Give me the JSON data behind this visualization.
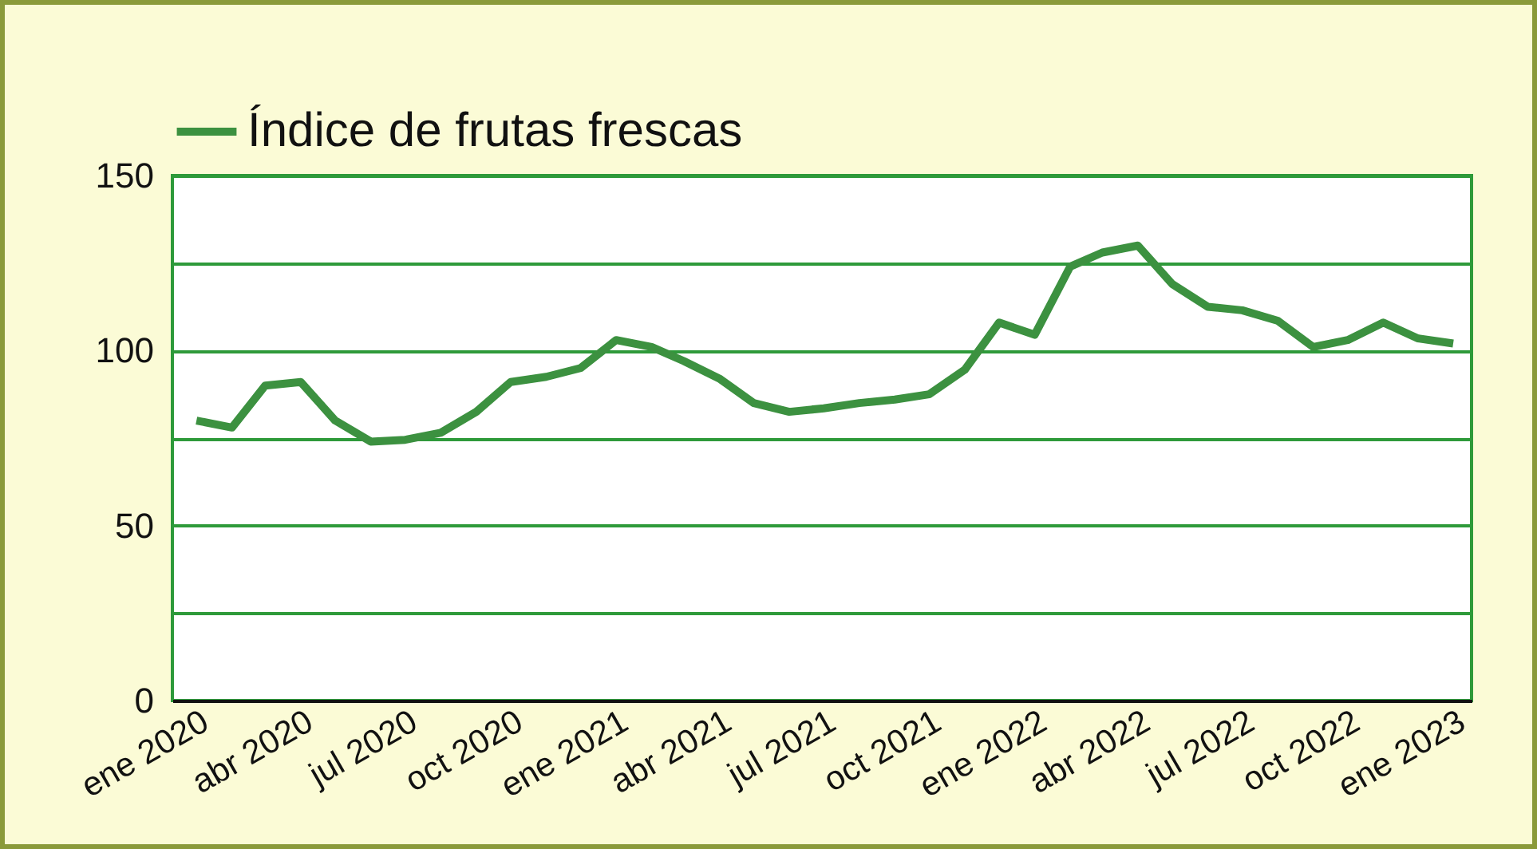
{
  "chart_data": {
    "type": "line",
    "x": [
      "2020-01",
      "2020-02",
      "2020-03",
      "2020-04",
      "2020-05",
      "2020-06",
      "2020-07",
      "2020-08",
      "2020-09",
      "2020-10",
      "2020-11",
      "2020-12",
      "2021-01",
      "2021-02",
      "2021-03",
      "2021-04",
      "2021-05",
      "2021-06",
      "2021-07",
      "2021-08",
      "2021-09",
      "2021-10",
      "2021-11",
      "2021-12",
      "2022-01",
      "2022-02",
      "2022-03",
      "2022-04",
      "2022-05",
      "2022-06",
      "2022-07",
      "2022-08",
      "2022-09",
      "2022-10",
      "2022-11",
      "2022-12",
      "2023-01"
    ],
    "series": [
      {
        "name": "Índice de frutas frescas",
        "color": "#3c9140",
        "values": [
          80,
          78,
          90,
          91,
          80,
          74,
          74.5,
          76.5,
          82.5,
          91,
          92.5,
          95,
          103,
          101,
          97,
          92,
          85,
          82.5,
          83.5,
          85,
          86,
          87.5,
          94.5,
          108,
          104.5,
          124,
          128,
          130,
          119,
          112.5,
          111.5,
          108.5,
          101,
          103,
          108,
          103.5,
          102
        ]
      }
    ],
    "xlim": [
      "2019-12-11",
      "2023-01-17"
    ],
    "xticks": [
      {
        "value": "2020-01",
        "label": "ene 2020"
      },
      {
        "value": "2020-04",
        "label": "abr 2020"
      },
      {
        "value": "2020-07",
        "label": "jul 2020"
      },
      {
        "value": "2020-10",
        "label": "oct 2020"
      },
      {
        "value": "2021-01",
        "label": "ene 2021"
      },
      {
        "value": "2021-04",
        "label": "abr 2021"
      },
      {
        "value": "2021-07",
        "label": "jul 2021"
      },
      {
        "value": "2021-10",
        "label": "oct 2021"
      },
      {
        "value": "2022-01",
        "label": "ene 2022"
      },
      {
        "value": "2022-04",
        "label": "abr 2022"
      },
      {
        "value": "2022-07",
        "label": "jul 2022"
      },
      {
        "value": "2022-10",
        "label": "oct 2022"
      },
      {
        "value": "2023-01",
        "label": "ene 2023"
      }
    ],
    "ylim": [
      0,
      150
    ],
    "yticks": [
      0,
      {
        "value": 25,
        "label": null
      },
      50,
      {
        "value": 75,
        "label": null
      },
      100,
      {
        "value": 125,
        "label": null
      },
      150
    ],
    "grid": "y",
    "legend": "top left",
    "marker": "none",
    "line_style": "solid"
  }
}
